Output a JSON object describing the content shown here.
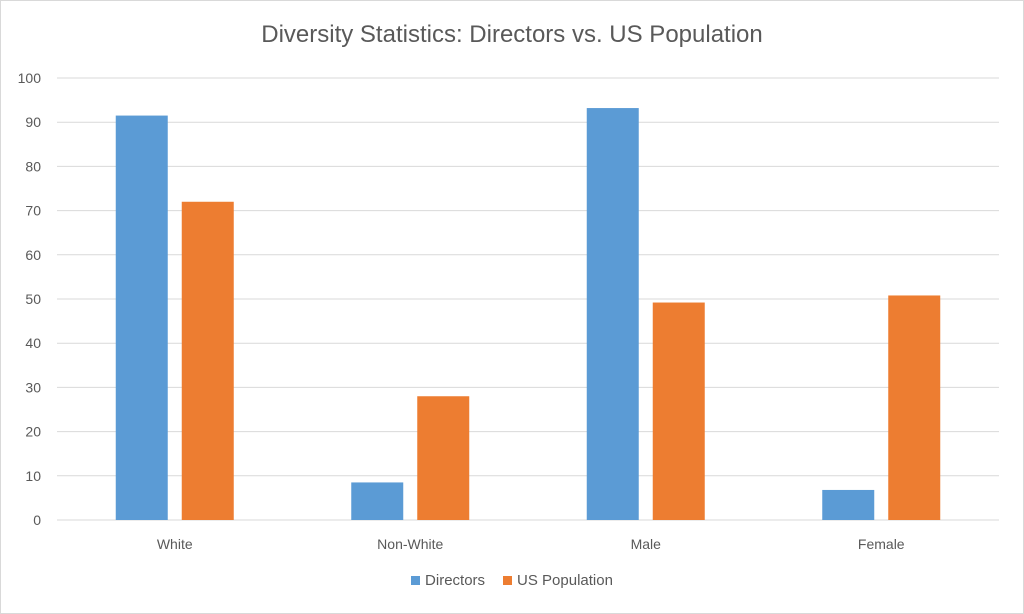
{
  "chart_data": {
    "type": "bar",
    "title": "Diversity Statistics: Directors vs. US Population",
    "categories": [
      "White",
      "Non-White",
      "Male",
      "Female"
    ],
    "series": [
      {
        "name": "Directors",
        "color": "#5b9bd5",
        "values": [
          91.5,
          8.5,
          93.2,
          6.8
        ]
      },
      {
        "name": "US Population",
        "color": "#ed7d31",
        "values": [
          72.0,
          28.0,
          49.2,
          50.8
        ]
      }
    ],
    "ylim": [
      0,
      100
    ],
    "yticks": [
      "0",
      "10",
      "20",
      "30",
      "40",
      "50",
      "60",
      "70",
      "80",
      "90",
      "100"
    ],
    "grid": true,
    "legend_position": "bottom",
    "xlabel": "",
    "ylabel": ""
  }
}
